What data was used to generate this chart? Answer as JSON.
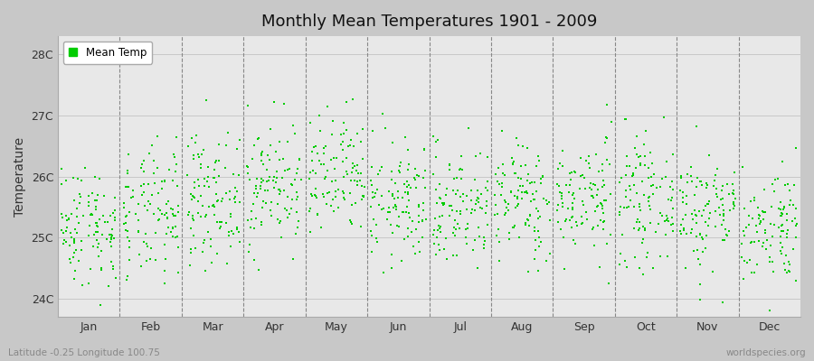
{
  "title": "Monthly Mean Temperatures 1901 - 2009",
  "ylabel": "Temperature",
  "xlabel_bottom_left": "Latitude -0.25 Longitude 100.75",
  "xlabel_bottom_right": "worldspecies.org",
  "legend_label": "Mean Temp",
  "dot_color": "#00cc00",
  "fig_bg_color": "#c8c8c8",
  "plot_bg_color": "#e8e8e8",
  "months": [
    "Jan",
    "Feb",
    "Mar",
    "Apr",
    "May",
    "Jun",
    "Jul",
    "Aug",
    "Sep",
    "Oct",
    "Nov",
    "Dec"
  ],
  "yticks": [
    24,
    25,
    26,
    27,
    28
  ],
  "ytick_labels": [
    "24C",
    "25C",
    "26C",
    "27C",
    "28C"
  ],
  "ylim": [
    23.7,
    28.3
  ],
  "year_start": 1901,
  "year_end": 2009,
  "seed": 42,
  "monthly_means": [
    25.2,
    25.35,
    25.65,
    25.85,
    25.95,
    25.55,
    25.5,
    25.6,
    25.65,
    25.6,
    25.45,
    25.2
  ],
  "monthly_stds": [
    0.5,
    0.55,
    0.52,
    0.52,
    0.52,
    0.5,
    0.5,
    0.5,
    0.48,
    0.5,
    0.5,
    0.48
  ]
}
